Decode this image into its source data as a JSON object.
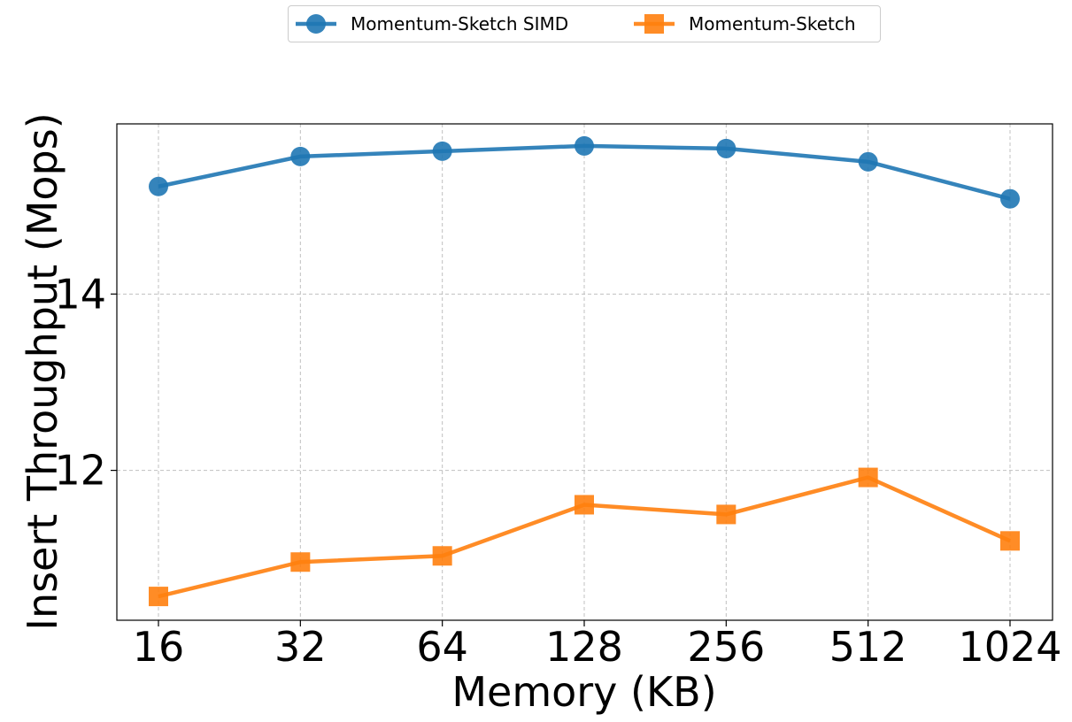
{
  "chart_data": {
    "type": "line",
    "title": "",
    "xlabel": "Memory (KB)",
    "ylabel": "Insert Throughput (Mops)",
    "categories": [
      "16",
      "32",
      "64",
      "128",
      "256",
      "512",
      "1024"
    ],
    "yticks": [
      12,
      14
    ],
    "ylim": [
      10.3,
      15.93
    ],
    "grid": true,
    "legend_position": "top-center, outside plot",
    "series": [
      {
        "name": "Momentum-Sketch SIMD",
        "color": "#1f77b4",
        "marker": "circle",
        "values": [
          15.22,
          15.56,
          15.62,
          15.68,
          15.65,
          15.5,
          15.08
        ]
      },
      {
        "name": "Momentum-Sketch",
        "color": "#ff7f0e",
        "marker": "square",
        "values": [
          10.57,
          10.96,
          11.03,
          11.61,
          11.5,
          11.92,
          11.2
        ]
      }
    ]
  }
}
